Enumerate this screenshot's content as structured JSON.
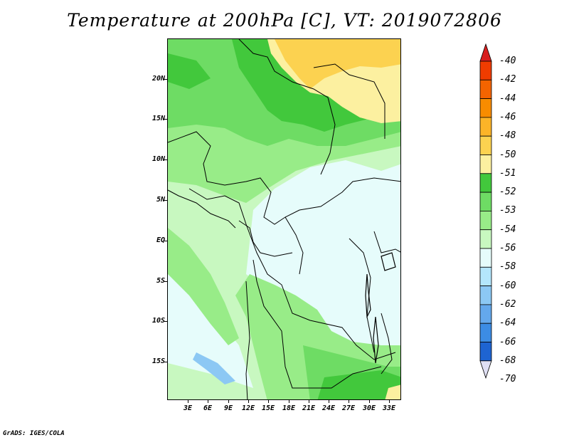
{
  "title": "Temperature at 200hPa [C], VT: 2019072806",
  "credit": "GrADS: IGES/COLA",
  "lat_labels": [
    "20N",
    "15N",
    "10N",
    "5N",
    "EQ",
    "5S",
    "10S",
    "15S"
  ],
  "lon_labels": [
    "3E",
    "6E",
    "9E",
    "12E",
    "15E",
    "18E",
    "21E",
    "24E",
    "27E",
    "30E",
    "33E"
  ],
  "legend": {
    "labels": [
      "-40",
      "-42",
      "-44",
      "-46",
      "-48",
      "-50",
      "-51",
      "-52",
      "-53",
      "-54",
      "-56",
      "-58",
      "-60",
      "-62",
      "-64",
      "-66",
      "-68",
      "-70"
    ],
    "colors": [
      "#f03c00",
      "#f46400",
      "#f88c00",
      "#fcb428",
      "#fcd250",
      "#fcf0a0",
      "#42c83c",
      "#6edc64",
      "#98ec88",
      "#c8f8c0",
      "#e6fcfb",
      "#b4e6fc",
      "#8cc8f4",
      "#64a8ec",
      "#3c8ce4",
      "#1e64d2",
      "#0a3ca0",
      "#0a1e6e"
    ],
    "top_arrow_color": "#d81e1e",
    "bottom_arrow_color": "#e0e0f4"
  },
  "map_colors": {
    "base": "#e6fcfb",
    "band_54": "#c8f8c0",
    "band_53": "#98ec88",
    "band_52": "#6edc64",
    "band_51": "#42c83c",
    "band_50": "#fcf0a0",
    "band_48": "#fcd250",
    "band_56": "#b4e6fc",
    "band_58": "#8cc8f4"
  }
}
